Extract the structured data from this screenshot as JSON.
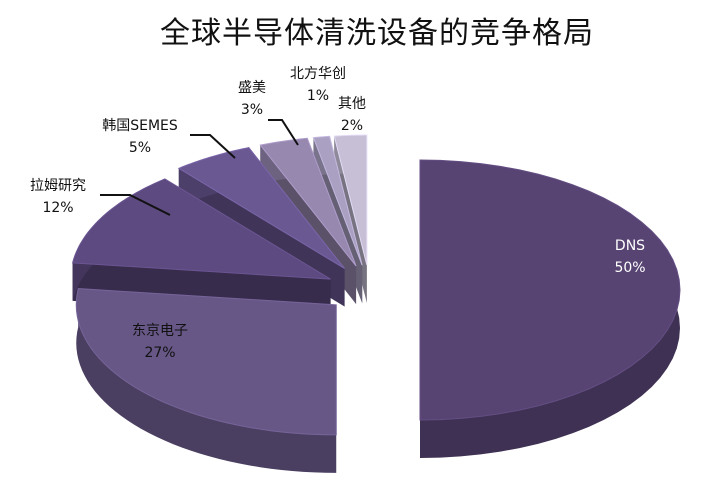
{
  "chart_data": {
    "type": "pie",
    "style": "3d-exploded",
    "title": "全球半导体清洗设备的竞争格局",
    "categories": [
      "DNS",
      "东京电子",
      "拉姆研究",
      "韩国SEMES",
      "盛美",
      "北方华创",
      "其他"
    ],
    "values": [
      50,
      27,
      12,
      5,
      3,
      1,
      2
    ],
    "labels": [
      "50%",
      "27%",
      "12%",
      "5%",
      "3%",
      "1%",
      "2%"
    ],
    "colors": [
      "#574473",
      "#675786",
      "#5d4a80",
      "#6a5893",
      "#9788b0",
      "#aaa0c2",
      "#c6bfd6"
    ],
    "legend": "none"
  }
}
